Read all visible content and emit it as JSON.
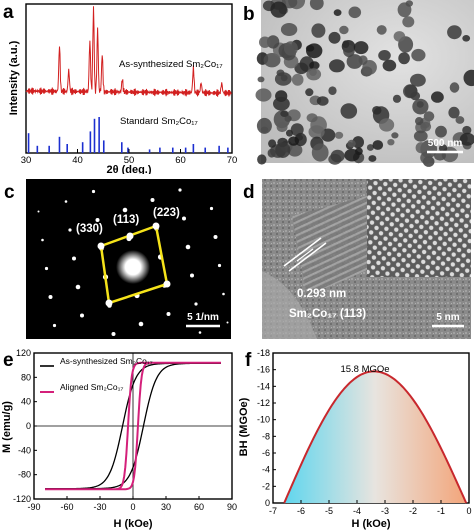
{
  "panels": {
    "a": {
      "label": "a",
      "line_label": "As-synthesized Sm₂Co₁₇",
      "ref_label": "Standard Sm₂Co₁₇",
      "xlabel": "2θ (deg.)",
      "ylabel": "Intensity (a.u.)",
      "xticks": [
        "30",
        "40",
        "50",
        "60",
        "70"
      ],
      "line_color": "#d22020",
      "ref_color": "#1c2fd0"
    },
    "b": {
      "label": "b",
      "scale": "500 nm"
    },
    "c": {
      "label": "c",
      "idx_330": "(330)",
      "idx_113": "(113)",
      "idx_223": "(223)",
      "scale": "5 1/nm",
      "frame_color": "#f5e31a"
    },
    "d": {
      "label": "d",
      "d_spacing": "0.293 nm",
      "phase": "Sm₂Co₁₇ (113)",
      "scale": "5 nm"
    },
    "e": {
      "label": "e",
      "legend": [
        "As-synthesized Sm₂Co₁₇",
        "Aligned Sm₂Co₁₇"
      ],
      "xlabel": "H (kOe)",
      "ylabel": "M (emu/g)",
      "xticks": [
        "-90",
        "-60",
        "-30",
        "0",
        "30",
        "60",
        "90"
      ],
      "yticks": [
        "120",
        "80",
        "40",
        "0",
        "-40",
        "-80",
        "-120"
      ],
      "colors": [
        "#000000",
        "#d4207a"
      ]
    },
    "f": {
      "label": "f",
      "peak_label": "15.8 MGOe",
      "xlabel": "H (kOe)",
      "ylabel": "BH (MGOe)",
      "xticks": [
        "-7",
        "-6",
        "-5",
        "-4",
        "-3",
        "-2",
        "-1",
        "0"
      ],
      "yticks": [
        "-18",
        "-16",
        "-14",
        "-12",
        "-10",
        "-8",
        "-6",
        "-4",
        "-2",
        "0"
      ],
      "curve_color": "#c8282d",
      "fill_left": "#5fd6ee",
      "fill_right": "#f3a57a"
    }
  },
  "chart_data": [
    {
      "panel": "a",
      "type": "line",
      "xlabel": "2θ (deg.)",
      "ylabel": "Intensity (a.u.)",
      "xlim": [
        30,
        70
      ],
      "series": [
        {
          "name": "As-synthesized Sm₂Co₁₇",
          "peaks": [
            {
              "x": 36.5,
              "h": 0.55
            },
            {
              "x": 38.3,
              "h": 0.25
            },
            {
              "x": 42.4,
              "h": 0.6
            },
            {
              "x": 43.1,
              "h": 1.0
            },
            {
              "x": 43.9,
              "h": 0.75
            },
            {
              "x": 44.8,
              "h": 0.45
            },
            {
              "x": 48.7,
              "h": 0.15
            },
            {
              "x": 62.5,
              "h": 0.3
            },
            {
              "x": 64.0,
              "h": 0.12
            },
            {
              "x": 68.0,
              "h": 0.12
            }
          ]
        },
        {
          "name": "Standard Sm₂Co₁₇",
          "sticks": [
            {
              "x": 30.5,
              "h": 0.55
            },
            {
              "x": 32.2,
              "h": 0.2
            },
            {
              "x": 34.5,
              "h": 0.2
            },
            {
              "x": 36.5,
              "h": 0.45
            },
            {
              "x": 38.0,
              "h": 0.25
            },
            {
              "x": 41.0,
              "h": 0.3
            },
            {
              "x": 42.5,
              "h": 0.6
            },
            {
              "x": 43.3,
              "h": 0.95
            },
            {
              "x": 44.2,
              "h": 1.0
            },
            {
              "x": 45.1,
              "h": 0.35
            },
            {
              "x": 48.6,
              "h": 0.3
            },
            {
              "x": 49.8,
              "h": 0.15
            },
            {
              "x": 54.0,
              "h": 0.1
            },
            {
              "x": 56.0,
              "h": 0.15
            },
            {
              "x": 58.5,
              "h": 0.15
            },
            {
              "x": 61.0,
              "h": 0.15
            },
            {
              "x": 62.5,
              "h": 0.25
            },
            {
              "x": 64.8,
              "h": 0.15
            },
            {
              "x": 67.5,
              "h": 0.2
            },
            {
              "x": 69.2,
              "h": 0.15
            }
          ]
        }
      ]
    },
    {
      "panel": "e",
      "type": "line",
      "xlabel": "H (kOe)",
      "ylabel": "M (emu/g)",
      "xlim": [
        -90,
        90
      ],
      "ylim": [
        -120,
        120
      ],
      "series": [
        {
          "name": "As-synthesized Sm₂Co₁₇",
          "Ms": 103,
          "Mr": 68,
          "Hc": 9.5
        },
        {
          "name": "Aligned Sm₂Co₁₇",
          "Ms": 104,
          "Mr": 92,
          "Hc": 4.5
        }
      ]
    },
    {
      "panel": "f",
      "type": "area",
      "xlabel": "H (kOe)",
      "ylabel": "BH (MGOe)",
      "xlim": [
        -7,
        0
      ],
      "ylim": [
        -18,
        0
      ],
      "peak": {
        "x": -3.4,
        "y": -15.8
      },
      "x_intercepts": [
        -6.6,
        -0.1
      ]
    }
  ]
}
